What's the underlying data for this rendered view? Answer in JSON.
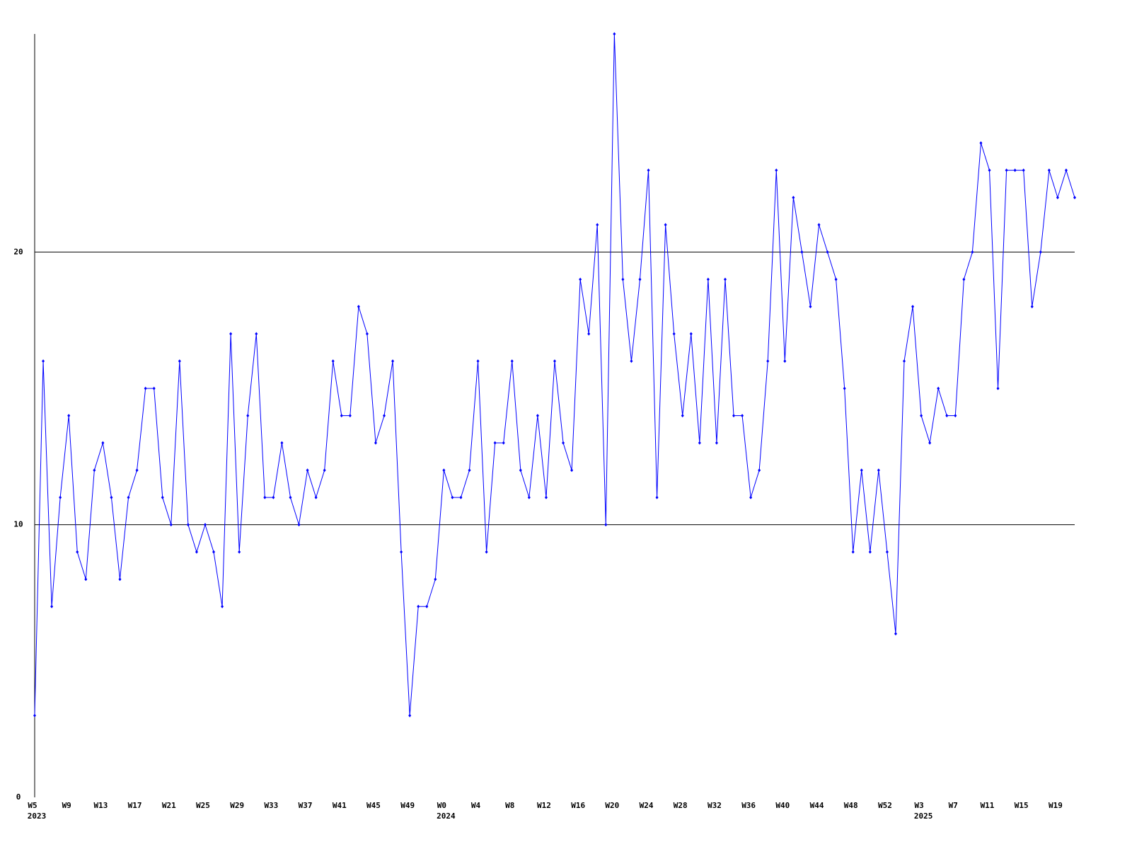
{
  "chart_data": {
    "type": "line",
    "categories": [
      "W5",
      null,
      null,
      null,
      "W9",
      null,
      null,
      null,
      "W13",
      null,
      null,
      null,
      "W17",
      null,
      null,
      null,
      "W21",
      null,
      null,
      null,
      "W25",
      null,
      null,
      null,
      "W29",
      null,
      null,
      null,
      "W33",
      null,
      null,
      null,
      "W37",
      null,
      null,
      null,
      "W41",
      null,
      null,
      null,
      "W45",
      null,
      null,
      null,
      "W49",
      null,
      null,
      null,
      "W0",
      null,
      null,
      null,
      "W4",
      null,
      null,
      null,
      "W8",
      null,
      null,
      null,
      "W12",
      null,
      null,
      null,
      "W16",
      null,
      null,
      null,
      "W20",
      null,
      null,
      null,
      "W24",
      null,
      null,
      null,
      "W28",
      null,
      null,
      null,
      "W32",
      null,
      null,
      null,
      "W36",
      null,
      null,
      null,
      "W40",
      null,
      null,
      null,
      "W44",
      null,
      null,
      null,
      "W48",
      null,
      null,
      null,
      "W52",
      null,
      null,
      null,
      "W3",
      null,
      null,
      null,
      "W7",
      null,
      null,
      null,
      "W11",
      null,
      null,
      null,
      "W15",
      null,
      null,
      null,
      "W19",
      null,
      null
    ],
    "x_sublabels": [
      "2023",
      null,
      null,
      null,
      null,
      null,
      null,
      null,
      null,
      null,
      null,
      null,
      null,
      null,
      null,
      null,
      null,
      null,
      null,
      null,
      null,
      null,
      null,
      null,
      null,
      null,
      null,
      null,
      null,
      null,
      null,
      null,
      null,
      null,
      null,
      null,
      null,
      null,
      null,
      null,
      null,
      null,
      null,
      null,
      null,
      null,
      null,
      null,
      "2024",
      null,
      null,
      null,
      null,
      null,
      null,
      null,
      null,
      null,
      null,
      null,
      null,
      null,
      null,
      null,
      null,
      null,
      null,
      null,
      null,
      null,
      null,
      null,
      null,
      null,
      null,
      null,
      null,
      null,
      null,
      null,
      null,
      null,
      null,
      null,
      null,
      null,
      null,
      null,
      null,
      null,
      null,
      null,
      null,
      null,
      null,
      null,
      null,
      null,
      null,
      null,
      null,
      null,
      null,
      null,
      "2025",
      null,
      null,
      null,
      null,
      null,
      null,
      null,
      null,
      null,
      null,
      null,
      null,
      null,
      null,
      null,
      null,
      null,
      null
    ],
    "series": [
      {
        "color": "#0000ff",
        "values": [
          3,
          16,
          7,
          11,
          14,
          9,
          8,
          12,
          13,
          11,
          8,
          11,
          12,
          15,
          15,
          11,
          10,
          16,
          10,
          9,
          10,
          9,
          7,
          17,
          9,
          14,
          17,
          11,
          11,
          13,
          11,
          10,
          12,
          11,
          12,
          16,
          14,
          14,
          18,
          17,
          13,
          14,
          16,
          9,
          3,
          7,
          7,
          8,
          12,
          11,
          11,
          12,
          16,
          9,
          13,
          13,
          16,
          12,
          11,
          14,
          11,
          16,
          13,
          12,
          19,
          17,
          21,
          10,
          28,
          19,
          16,
          19,
          23,
          11,
          21,
          17,
          14,
          17,
          13,
          19,
          13,
          19,
          14,
          14,
          11,
          12,
          16,
          23,
          16,
          22,
          20,
          18,
          21,
          20,
          19,
          15,
          9,
          12,
          9,
          12,
          9,
          6,
          16,
          18,
          14,
          13,
          15,
          14,
          14,
          19,
          20,
          24,
          23,
          15,
          23,
          23,
          23,
          18,
          20,
          23,
          22,
          23,
          22
        ]
      }
    ],
    "ylim": [
      0,
      28
    ],
    "yticks": [
      0,
      10,
      20
    ],
    "grid": true
  }
}
